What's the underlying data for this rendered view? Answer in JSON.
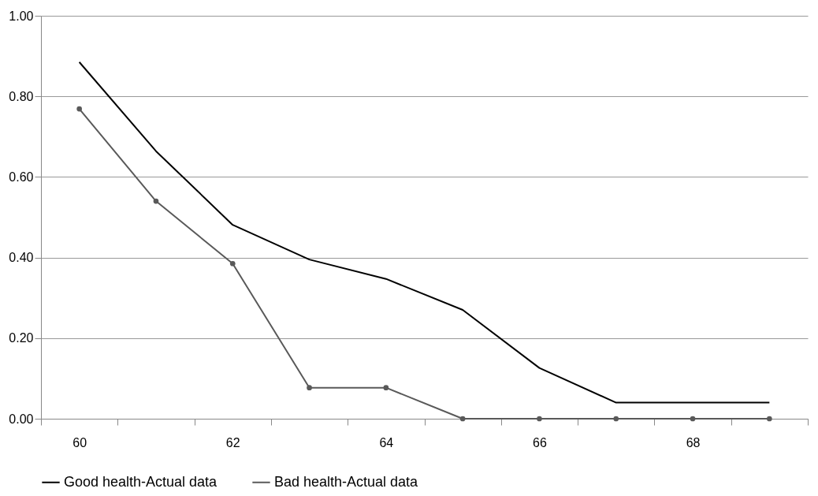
{
  "chart_data": {
    "type": "line",
    "x": [
      60,
      61,
      62,
      63,
      64,
      65,
      66,
      67,
      68,
      69
    ],
    "series": [
      {
        "name": "Good health-Actual data",
        "color": "#000000",
        "marker": "none",
        "values": [
          0.885,
          0.664,
          0.481,
          0.395,
          0.347,
          0.27,
          0.126,
          0.04,
          0.04,
          0.04
        ]
      },
      {
        "name": "Bad health-Actual data",
        "color": "#595959",
        "marker": "circle",
        "values": [
          0.769,
          0.54,
          0.385,
          0.077,
          0.077,
          0,
          0,
          0,
          0,
          0
        ]
      }
    ],
    "xlim": [
      59.5,
      69.5
    ],
    "xticks": [
      {
        "value": 59.5,
        "label": null
      },
      60,
      {
        "value": 60.5,
        "label": null
      },
      {
        "value": 61.5,
        "label": null
      },
      62,
      {
        "value": 62.5,
        "label": null
      },
      {
        "value": 63.5,
        "label": null
      },
      64,
      {
        "value": 64.5,
        "label": null
      },
      {
        "value": 65.5,
        "label": null
      },
      66,
      {
        "value": 66.5,
        "label": null
      },
      {
        "value": 67.5,
        "label": null
      },
      68,
      {
        "value": 68.5,
        "label": null
      },
      {
        "value": 69.5,
        "label": null
      }
    ],
    "ylim": [
      0,
      1
    ],
    "yticks": [
      {
        "value": 0,
        "label": "0.00"
      },
      {
        "value": 0.2,
        "label": "0.20"
      },
      {
        "value": 0.4,
        "label": "0.40"
      },
      {
        "value": 0.6,
        "label": "0.60"
      },
      {
        "value": 0.8,
        "label": "0.80"
      },
      {
        "value": 1,
        "label": "1.00"
      }
    ],
    "grid": "y",
    "legend": "bottom",
    "line_style": "solid"
  }
}
